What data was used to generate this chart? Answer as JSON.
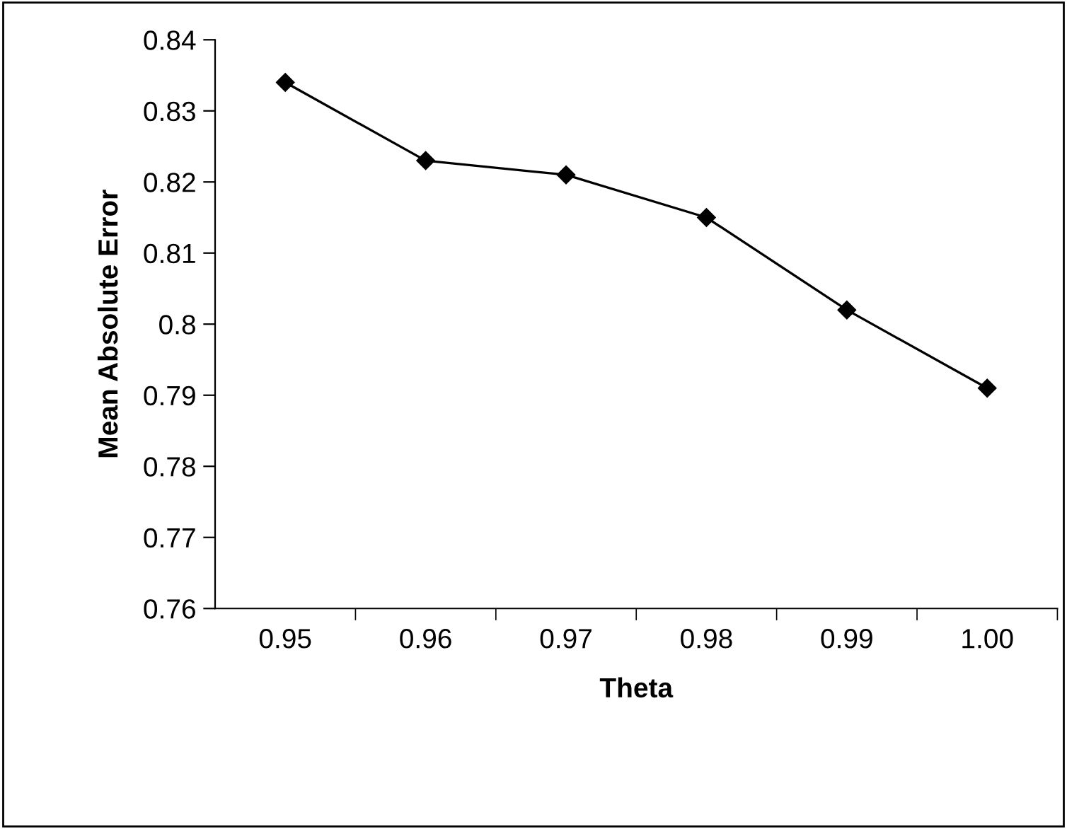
{
  "chart_data": {
    "type": "line",
    "xlabel": "Theta",
    "ylabel": "Mean Absolute Error",
    "categories": [
      "0.95",
      "0.96",
      "0.97",
      "0.98",
      "0.99",
      "1.00"
    ],
    "series": [
      {
        "color": "#000000",
        "values": [
          0.834,
          0.823,
          0.821,
          0.815,
          0.802,
          0.791
        ]
      }
    ],
    "ylim": [
      0.76,
      0.84
    ],
    "yticks": [
      0.76,
      0.77,
      0.78,
      0.79,
      0.8,
      0.81,
      0.82,
      0.83,
      0.84
    ],
    "marker": "diamond",
    "line_style": "solid",
    "grid": false,
    "legend": false
  }
}
